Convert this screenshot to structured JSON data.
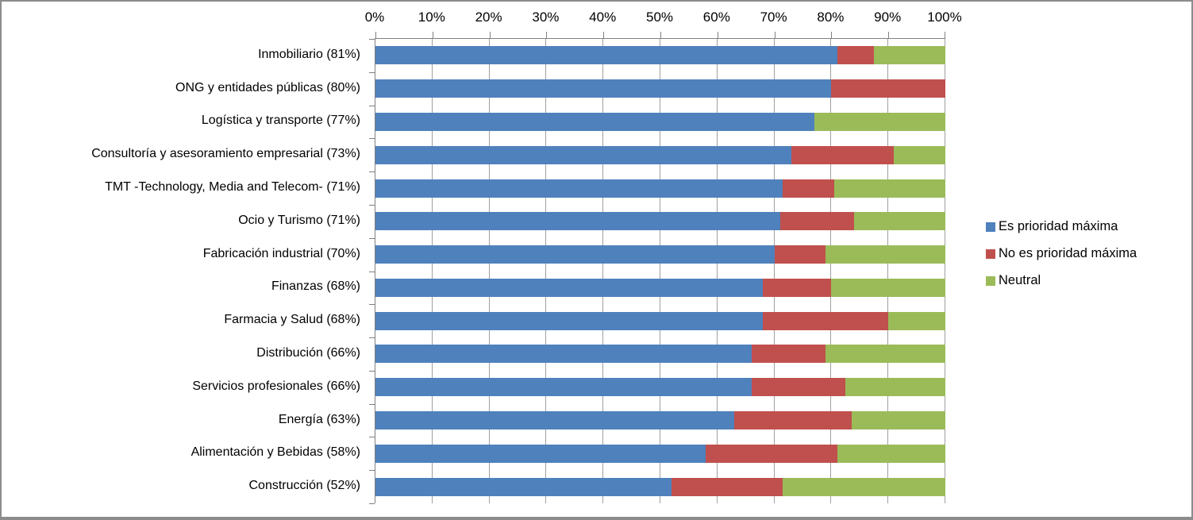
{
  "chart_data": {
    "type": "bar",
    "stacked": true,
    "horizontal": true,
    "percent_stacked": true,
    "title": "",
    "xlabel": "",
    "ylabel": "",
    "xlim": [
      0,
      100
    ],
    "x_ticks": [
      "0%",
      "10%",
      "20%",
      "30%",
      "40%",
      "50%",
      "60%",
      "70%",
      "80%",
      "90%",
      "100%"
    ],
    "grid": true,
    "legend_position": "right-middle",
    "categories": [
      "Inmobiliario (81%)",
      "ONG y entidades públicas (80%)",
      "Logística y transporte (77%)",
      "Consultoría y asesoramiento empresarial (73%)",
      "TMT -Technology, Media and Telecom- (71%)",
      "Ocio y Turismo (71%)",
      "Fabricación industrial (70%)",
      "Finanzas (68%)",
      "Farmacia y Salud (68%)",
      "Distribución (66%)",
      "Servicios profesionales (66%)",
      "Energía (63%)",
      "Alimentación y Bebidas (58%)",
      "Construcción (52%)"
    ],
    "series": [
      {
        "name": "Es prioridad máxima",
        "color": "#4F81BD",
        "values": [
          81,
          80,
          77,
          73,
          71.5,
          71,
          70,
          68,
          68,
          66,
          66,
          63,
          58,
          52
        ]
      },
      {
        "name": "No es prioridad máxima",
        "color": "#C0504D",
        "values": [
          6.5,
          20,
          0,
          18,
          9,
          13,
          9,
          12,
          22,
          13,
          16.5,
          20.5,
          23,
          19.5
        ]
      },
      {
        "name": "Neutral",
        "color": "#9BBB59",
        "values": [
          12.5,
          0,
          23,
          9,
          19.5,
          16,
          21,
          20,
          10,
          21,
          17.5,
          16.5,
          19,
          28.5
        ]
      }
    ]
  },
  "colors": {
    "gridline": "#a0a0a0",
    "axis_line": "#808080",
    "frame_border": "#8c8c8c",
    "background": "#ffffff",
    "text": "#000000"
  }
}
